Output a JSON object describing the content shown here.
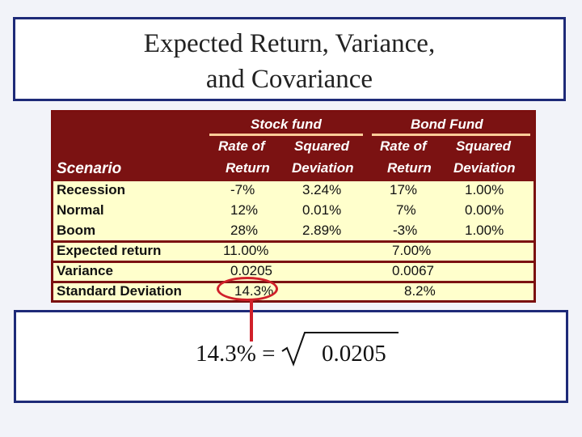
{
  "title": {
    "line1": "Expected Return, Variance,",
    "line2": "and Covariance"
  },
  "table": {
    "header": {
      "stock_fund": "Stock fund",
      "bond_fund": "Bond Fund",
      "rate_of": "Rate of",
      "return": "Return",
      "squared": "Squared",
      "deviation": "Deviation",
      "scenario": "Scenario"
    },
    "rows": [
      {
        "label": "Recession",
        "stock_rate": "-7%",
        "stock_sq": "3.24%",
        "bond_rate": "17%",
        "bond_sq": "1.00%"
      },
      {
        "label": "Normal",
        "stock_rate": "12%",
        "stock_sq": "0.01%",
        "bond_rate": "7%",
        "bond_sq": "0.00%"
      },
      {
        "label": "Boom",
        "stock_rate": "28%",
        "stock_sq": "2.89%",
        "bond_rate": "-3%",
        "bond_sq": "1.00%"
      }
    ],
    "summary": [
      {
        "label": "Expected return",
        "stock": "11.00%",
        "bond": "7.00%"
      },
      {
        "label": "Variance",
        "stock": "0.0205",
        "bond": "0.0067"
      },
      {
        "label": "Standard Deviation",
        "stock": "14.3%",
        "bond": "8.2%"
      }
    ]
  },
  "formula": {
    "lhs": "14.3% =",
    "radicand": "0.0205"
  },
  "colors": {
    "header_bg": "#7b1212",
    "table_bg": "#ffffcc",
    "highlight": "#d0202a",
    "frame": "#1e2a78"
  }
}
